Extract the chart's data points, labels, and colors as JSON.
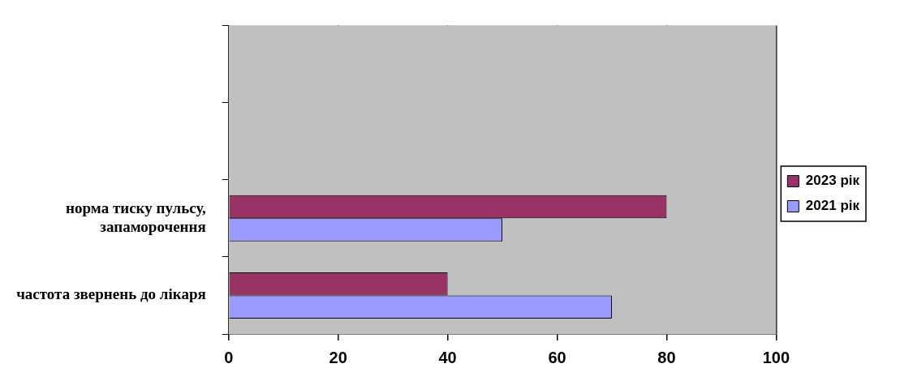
{
  "chart_data": {
    "type": "bar",
    "orientation": "horizontal",
    "categories": [
      null,
      null,
      "норма тиску пульсу, запаморочення",
      "частота звернень до лікаря"
    ],
    "series": [
      {
        "name": "2023 рік",
        "color": "#993366",
        "values": [
          null,
          null,
          80,
          40
        ]
      },
      {
        "name": "2021 рік",
        "color": "#9999ff",
        "values": [
          null,
          null,
          50,
          70
        ]
      }
    ],
    "xlim": [
      0,
      100
    ],
    "xticks": [
      0,
      20,
      40,
      60,
      80,
      100
    ],
    "grid": "x",
    "legend": "right"
  }
}
